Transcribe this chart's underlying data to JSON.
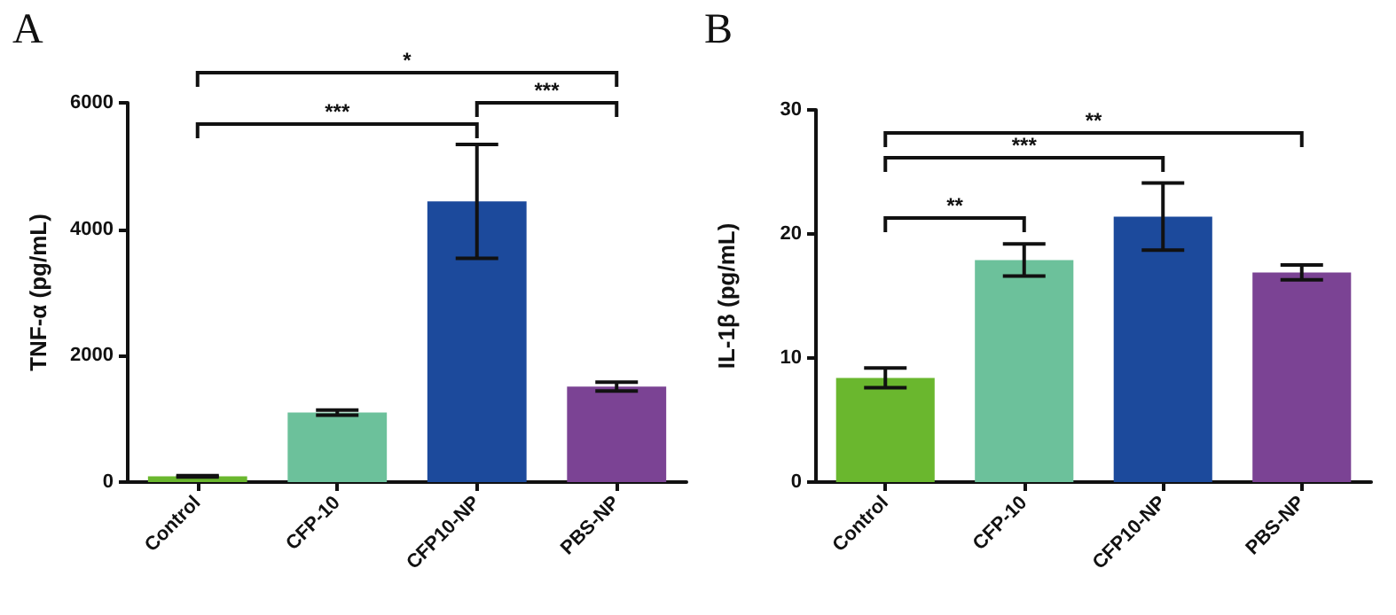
{
  "chart_data": [
    {
      "type": "bar",
      "title": "A",
      "ylabel": "TNF-α (pg/mL)",
      "categories": [
        "Control",
        "CFP-10",
        "CFP10-NP",
        "PBS-NP"
      ],
      "values": [
        90,
        1100,
        4440,
        1510
      ],
      "errors": [
        10,
        40,
        900,
        70
      ],
      "colors": [
        "#6ab72e",
        "#6cc19b",
        "#1c4a9c",
        "#7b4394"
      ],
      "ylim": [
        0,
        6000
      ],
      "yticks": [
        0,
        2000,
        4000,
        6000
      ],
      "grid": false,
      "annotations": [
        "*",
        "***",
        "***"
      ]
    },
    {
      "type": "bar",
      "title": "B",
      "ylabel": "IL-1β (pg/mL)",
      "categories": [
        "Control",
        "CFP-10",
        "CFP10-NP",
        "PBS-NP"
      ],
      "values": [
        8.4,
        17.9,
        21.4,
        16.9
      ],
      "errors": [
        0.8,
        1.3,
        2.7,
        0.6
      ],
      "colors": [
        "#6ab72e",
        "#6cc19b",
        "#1c4a9c",
        "#7b4394"
      ],
      "ylim": [
        0,
        30
      ],
      "yticks": [
        0,
        10,
        20,
        30
      ],
      "grid": false,
      "annotations": [
        "**",
        "***",
        "**"
      ]
    }
  ]
}
